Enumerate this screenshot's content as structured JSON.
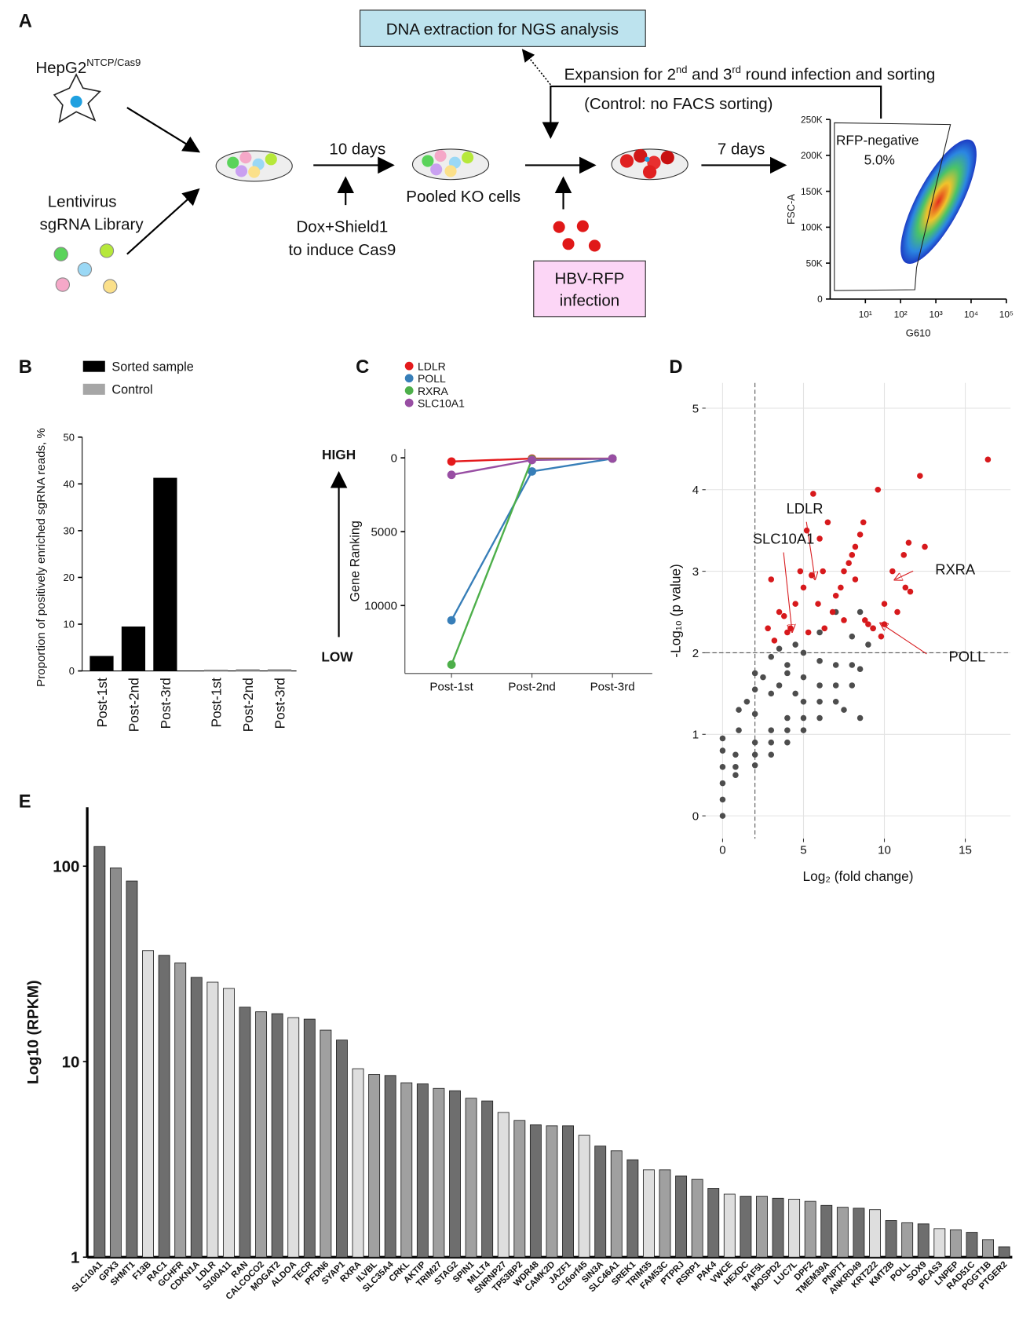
{
  "panel_labels": [
    "A",
    "B",
    "C",
    "D",
    "E"
  ],
  "diagram": {
    "hepg2": "HepG2",
    "hepg2_sup": "NTCP/Cas9",
    "library": [
      "Lentivirus",
      "sgRNA Library"
    ],
    "ten_days": "10 days",
    "dox": [
      "Dox+Shield1",
      "to induce Cas9"
    ],
    "pooled": "Pooled KO cells",
    "dna": "DNA extraction for NGS analysis",
    "expansion": [
      "Expansion for 2",
      "nd",
      " and 3",
      "rd",
      " round infection and sorting"
    ],
    "control": "(Control: no FACS sorting)",
    "hbv": [
      "HBV-RFP",
      "infection"
    ],
    "seven_days": "7 days"
  },
  "chart_data": [
    {
      "type": "density",
      "xlabel": "G610",
      "ylabel": "FSC-A",
      "log_x": true,
      "xlim": [
        1,
        100000
      ],
      "xticks": [
        {
          "value": 10,
          "label": "10¹"
        },
        {
          "value": 100,
          "label": "10²"
        },
        {
          "value": 1000,
          "label": "10³"
        },
        {
          "value": 10000,
          "label": "10⁴"
        },
        {
          "value": 100000,
          "label": "10⁵"
        }
      ],
      "ylim": [
        0,
        250000
      ],
      "yticks": [
        0,
        {
          "value": 50000,
          "label": "50K"
        },
        {
          "value": 100000,
          "label": "100K"
        },
        {
          "value": 150000,
          "label": "150K"
        },
        {
          "value": 200000,
          "label": "200K"
        },
        {
          "value": 250000,
          "label": "250K"
        }
      ],
      "annotations": [
        "RFP-negative",
        "5.0%"
      ]
    },
    {
      "type": "bar",
      "ylabel": "Proportion of positively enriched sgRNA reads, %",
      "categories": [
        "Post-1st",
        "Post-2nd",
        "Post-3rd"
      ],
      "series": [
        {
          "name": "Sorted sample",
          "color": "#000000",
          "values": [
            3.2,
            9.5,
            41.3
          ]
        },
        {
          "name": "Control",
          "color": "#a6a6a6",
          "values": [
            0.3,
            0.4,
            0.4
          ]
        }
      ],
      "ylim": [
        0,
        50
      ],
      "yticks": [
        0,
        10,
        20,
        30,
        40,
        50
      ]
    },
    {
      "type": "line",
      "ylabel": "Gene Ranking",
      "annotations": [
        "HIGH",
        "LOW"
      ],
      "categories": [
        "Post-1st",
        "Post-2nd",
        "Post-3rd"
      ],
      "series": [
        {
          "name": "LDLR",
          "color": "#e41a1c",
          "values": [
            250,
            50,
            50
          ]
        },
        {
          "name": "POLL",
          "color": "#377eb8",
          "values": [
            11000,
            920,
            50
          ]
        },
        {
          "name": "RXRA",
          "color": "#4daf4a",
          "values": [
            14000,
            100,
            50
          ]
        },
        {
          "name": "SLC10A1",
          "color": "#984ea3",
          "values": [
            1150,
            150,
            50
          ]
        }
      ],
      "ylim": [
        -600,
        14600
      ],
      "y_inverted": true,
      "yticks": [
        0,
        5000,
        10000
      ]
    },
    {
      "type": "scatter",
      "xlabel": "Log₂ (fold change)",
      "ylabel": "-Log₁₀ (p value)",
      "xlim": [
        -1.05,
        17.8
      ],
      "ylim": [
        -0.28,
        5.31
      ],
      "xticks": [
        0,
        5,
        10,
        15
      ],
      "yticks": [
        0,
        1,
        2,
        3,
        4,
        5
      ],
      "grid": true,
      "vlines": [
        2
      ],
      "hlines": [
        2
      ],
      "series": [
        {
          "color": "#4d4d4d",
          "x": [
            0,
            0,
            0,
            0,
            0,
            0,
            1,
            2,
            3,
            4,
            5,
            6,
            7,
            0.8,
            2,
            3,
            4,
            5,
            6,
            7,
            8,
            8.5,
            0.8,
            2,
            3,
            4,
            5,
            6,
            7,
            8,
            9,
            9.3,
            0.8,
            2,
            3,
            4,
            5,
            6,
            7,
            8,
            8.5,
            1.5,
            2.5,
            3,
            3.5,
            4,
            2,
            4.5,
            5,
            1,
            2,
            3.5,
            4.5,
            6,
            8.5,
            7.5
          ],
          "y": [
            0,
            0.2,
            0.4,
            0.6,
            0.8,
            0.95,
            1.05,
            1.25,
            1.5,
            1.75,
            2,
            2.25,
            2.5,
            0.75,
            0.9,
            1.05,
            1.2,
            1.4,
            1.6,
            1.85,
            2.2,
            2.5,
            0.6,
            0.75,
            0.9,
            1.05,
            1.2,
            1.4,
            1.6,
            1.85,
            2.1,
            2.3,
            0.5,
            0.62,
            0.75,
            0.9,
            1.05,
            1.2,
            1.4,
            1.6,
            1.8,
            1.4,
            1.7,
            1.95,
            1.6,
            1.85,
            1.55,
            1.5,
            1.7,
            1.3,
            1.75,
            2.05,
            2.1,
            1.9,
            1.2,
            1.3
          ]
        },
        {
          "color": "#d7191c",
          "x": [
            4,
            4.2,
            3.5,
            3,
            3.2,
            4.5,
            5,
            5.5,
            5.2,
            5.6,
            6,
            6.5,
            6.3,
            5.9,
            6.8,
            7,
            7.3,
            7.5,
            7.8,
            8,
            8.2,
            8.5,
            8.7,
            8.2,
            9.6,
            8.8,
            9,
            9.3,
            10,
            10.5,
            11.2,
            11.5,
            11.3,
            11.6,
            12.2,
            12.5,
            16.4,
            10,
            4.8,
            3.8,
            2.8,
            6.2,
            7.5,
            5.3,
            9.8,
            10.8
          ],
          "y": [
            2.25,
            2.3,
            2.5,
            2.9,
            2.15,
            2.6,
            2.8,
            2.95,
            3.5,
            3.95,
            3.4,
            3.6,
            2.3,
            2.6,
            2.5,
            2.7,
            2.8,
            3,
            3.1,
            3.2,
            3.3,
            3.45,
            3.6,
            2.9,
            4,
            2.4,
            2.35,
            2.3,
            2.6,
            3,
            3.2,
            3.35,
            2.8,
            2.75,
            4.17,
            3.3,
            4.37,
            2.35,
            3,
            2.45,
            2.3,
            3,
            2.4,
            2.25,
            2.2,
            2.5
          ]
        }
      ],
      "annotations": [
        "LDLR",
        "SLC10A1",
        "RXRA",
        "POLL"
      ],
      "annotation_color": "#d7191c"
    },
    {
      "type": "bar",
      "log_y": true,
      "ylabel": "Log10 (RPKM)",
      "categories": [
        "SLC10A1",
        "GPX3",
        "SHMT1",
        "F13B",
        "RAC1",
        "GCHFR",
        "CDKN1A",
        "LDLR",
        "S100A11",
        "RAN",
        "CALCOCO2",
        "MOGAT2",
        "ALDOA",
        "TECR",
        "PFDN6",
        "SYAP1",
        "RXRA",
        "ILVBL",
        "SLC35A4",
        "CRKL",
        "AKTIP",
        "TRIM27",
        "STAG2",
        "SPIN1",
        "MLLT4",
        "SNRNP27",
        "TP53BP2",
        "WDR48",
        "CAMK2D",
        "JAZF1",
        "C16orf45",
        "SIN3A",
        "SLC46A1",
        "SREK1",
        "TRIM35",
        "FAM53C",
        "PTPRJ",
        "RSRP1",
        "PAK4",
        "VWCE",
        "HEXDC",
        "TAF5L",
        "MOSPD2",
        "LUC7L",
        "DPF2",
        "TMEM39A",
        "PNPT1",
        "ANKRD49",
        "KRT222",
        "KMT2B",
        "POLL",
        "SOX9",
        "BCAS3",
        "LNPEP",
        "RAD51C",
        "PGGT1B",
        "PTGER2"
      ],
      "values": [
        126,
        98,
        84,
        37,
        35,
        32,
        27,
        25.5,
        23.7,
        19,
        18,
        17.6,
        16.8,
        16.5,
        14.5,
        12.9,
        9.2,
        8.6,
        8.5,
        7.8,
        7.7,
        7.3,
        7.1,
        6.5,
        6.3,
        5.5,
        5,
        4.75,
        4.7,
        4.7,
        4.2,
        3.7,
        3.5,
        3.15,
        2.8,
        2.8,
        2.6,
        2.5,
        2.25,
        2.1,
        2.05,
        2.05,
        2,
        1.98,
        1.93,
        1.84,
        1.8,
        1.78,
        1.75,
        1.54,
        1.5,
        1.48,
        1.4,
        1.38,
        1.34,
        1.23,
        1.13
      ],
      "colors": [
        "#6e6e6e",
        "#8c8c8c",
        "#6e6e6e",
        "#dedede",
        "#6e6e6e",
        "#a0a0a0",
        "#6e6e6e",
        "#dedede",
        "#dedede",
        "#6e6e6e",
        "#a0a0a0",
        "#6e6e6e",
        "#dedede",
        "#6e6e6e",
        "#a0a0a0",
        "#6e6e6e",
        "#dedede",
        "#a0a0a0",
        "#6e6e6e",
        "#a0a0a0",
        "#6e6e6e",
        "#a0a0a0",
        "#6e6e6e",
        "#a0a0a0",
        "#6e6e6e",
        "#dedede",
        "#a0a0a0",
        "#6e6e6e",
        "#a0a0a0",
        "#6e6e6e",
        "#dedede",
        "#6e6e6e",
        "#a0a0a0",
        "#6e6e6e",
        "#dedede",
        "#a0a0a0",
        "#6e6e6e",
        "#a0a0a0",
        "#6e6e6e",
        "#dedede",
        "#6e6e6e",
        "#a0a0a0",
        "#6e6e6e",
        "#dedede",
        "#a0a0a0",
        "#6e6e6e",
        "#a0a0a0",
        "#6e6e6e",
        "#dedede",
        "#6e6e6e",
        "#a0a0a0",
        "#6e6e6e",
        "#dedede",
        "#a0a0a0",
        "#6e6e6e",
        "#a0a0a0",
        "#6e6e6e"
      ],
      "ylim": [
        1,
        200
      ],
      "yticks": [
        1,
        10,
        100
      ]
    }
  ]
}
